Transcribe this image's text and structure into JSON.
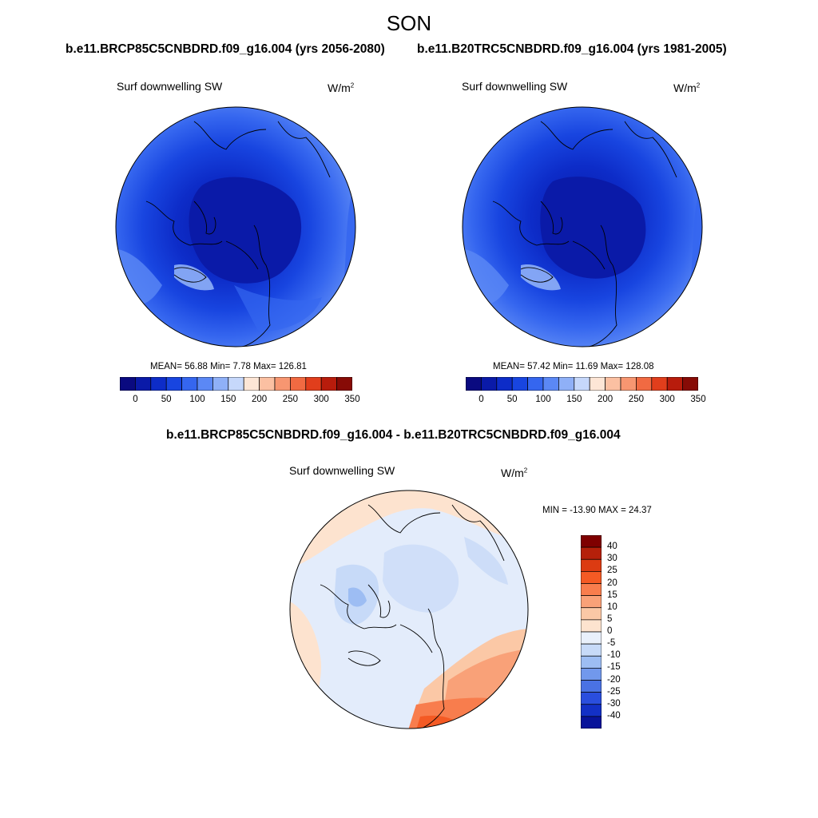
{
  "title": "SON",
  "panels": [
    {
      "id": "future",
      "case_title": "b.e11.BRCP85C5CNBDRD.f09_g16.004 (yrs 2056-2080)",
      "variable": "Surf downwelling SW",
      "units": "W/m",
      "units_exp": "2",
      "stats": "MEAN=  56.88  Min=   7.78  Max= 126.81"
    },
    {
      "id": "historical",
      "case_title": "b.e11.B20TRC5CNBDRD.f09_g16.004 (yrs 1981-2005)",
      "variable": "Surf downwelling SW",
      "units": "W/m",
      "units_exp": "2",
      "stats": "MEAN=  57.42  Min=  11.69  Max= 128.08"
    }
  ],
  "abs_colorbar": {
    "colors": [
      "#0a0a80",
      "#0a1aa8",
      "#0d2cc8",
      "#1845e0",
      "#3566ef",
      "#5b88f5",
      "#8fb0f7",
      "#c6d8fb",
      "#fde6d6",
      "#fbc0a2",
      "#f79671",
      "#f16a42",
      "#e13e1c",
      "#b81c0c",
      "#870b06"
    ],
    "ticks": [
      "0",
      "50",
      "100",
      "150",
      "200",
      "250",
      "300",
      "350"
    ]
  },
  "difference": {
    "title": "b.e11.BRCP85C5CNBDRD.f09_g16.004 - b.e11.B20TRC5CNBDRD.f09_g16.004",
    "variable": "Surf downwelling SW",
    "units": "W/m",
    "units_exp": "2",
    "stats": "MIN = -13.90 MAX =  24.37",
    "colorbar": {
      "colors": [
        "#7f0000",
        "#b5200a",
        "#dc3b12",
        "#f45a24",
        "#f87d4d",
        "#f9a178",
        "#fbc8a6",
        "#fde3cf",
        "#e9f0fb",
        "#c7daf8",
        "#9dbdf3",
        "#7198ec",
        "#4a72e4",
        "#2a4ede",
        "#1330c6",
        "#08139a"
      ],
      "labels": [
        "40",
        "30",
        "25",
        "20",
        "15",
        "10",
        "5",
        "0",
        "-5",
        "-10",
        "-15",
        "-20",
        "-25",
        "-30",
        "-40"
      ]
    }
  }
}
